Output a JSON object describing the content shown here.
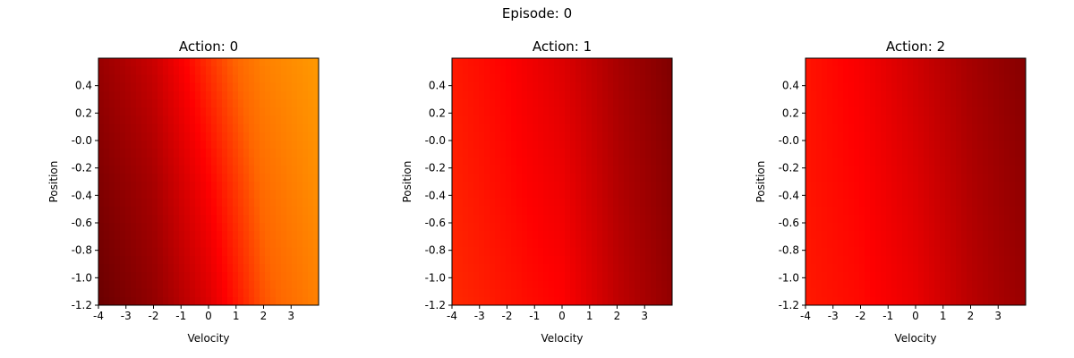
{
  "figure": {
    "suptitle": "Episode: 0"
  },
  "colormap": [
    "#5a0000",
    "#a80000",
    "#ff0000",
    "#ff6600",
    "#ff9900"
  ],
  "chart_data": [
    {
      "type": "heatmap",
      "title": "Action: 0",
      "xlabel": "Velocity",
      "ylabel": "Position",
      "xlim": [
        -4,
        4
      ],
      "ylim": [
        -1.2,
        0.6
      ],
      "xticks": [
        -4,
        -3,
        -2,
        -1,
        0,
        1,
        2,
        3
      ],
      "xtick_labels": [
        "-4",
        "-3",
        "-2",
        "-1",
        "0",
        "1",
        "2",
        "3"
      ],
      "yticks": [
        -1.2,
        -1.0,
        -0.8,
        -0.6,
        -0.4,
        -0.2,
        0.0,
        0.2,
        0.4
      ],
      "ytick_labels": [
        "-1.2",
        "-1.0",
        "-0.8",
        "-0.6",
        "-0.4",
        "-0.2",
        "-0.0",
        "0.2",
        "0.4"
      ],
      "grid": false,
      "value_grid": {
        "x": [
          -4,
          -2,
          0,
          2,
          4
        ],
        "y": [
          -1.2,
          -0.3,
          0.6
        ],
        "z": [
          [
            0.05,
            0.18,
            0.4,
            0.7,
            0.88
          ],
          [
            0.12,
            0.25,
            0.5,
            0.78,
            0.95
          ],
          [
            0.2,
            0.35,
            0.62,
            0.88,
            1.0
          ]
        ]
      }
    },
    {
      "type": "heatmap",
      "title": "Action: 1",
      "xlabel": "Velocity",
      "ylabel": "Position",
      "xlim": [
        -4,
        4
      ],
      "ylim": [
        -1.2,
        0.6
      ],
      "xticks": [
        -4,
        -3,
        -2,
        -1,
        0,
        1,
        2,
        3
      ],
      "xtick_labels": [
        "-4",
        "-3",
        "-2",
        "-1",
        "0",
        "1",
        "2",
        "3"
      ],
      "yticks": [
        -1.2,
        -1.0,
        -0.8,
        -0.6,
        -0.4,
        -0.2,
        0.0,
        0.2,
        0.4
      ],
      "ytick_labels": [
        "-1.2",
        "-1.0",
        "-0.8",
        "-0.6",
        "-0.4",
        "-0.2",
        "-0.0",
        "0.2",
        "0.4"
      ],
      "grid": false,
      "value_grid": {
        "x": [
          -4,
          -2,
          0,
          2,
          4
        ],
        "y": [
          -1.2,
          -0.3,
          0.6
        ],
        "z": [
          [
            0.6,
            0.55,
            0.5,
            0.32,
            0.18
          ],
          [
            0.58,
            0.52,
            0.45,
            0.28,
            0.15
          ],
          [
            0.56,
            0.5,
            0.4,
            0.25,
            0.12
          ]
        ]
      }
    },
    {
      "type": "heatmap",
      "title": "Action: 2",
      "xlabel": "Velocity",
      "ylabel": "Position",
      "xlim": [
        -4,
        4
      ],
      "ylim": [
        -1.2,
        0.6
      ],
      "xticks": [
        -4,
        -3,
        -2,
        -1,
        0,
        1,
        2,
        3
      ],
      "xtick_labels": [
        "-4",
        "-3",
        "-2",
        "-1",
        "0",
        "1",
        "2",
        "3"
      ],
      "yticks": [
        -1.2,
        -1.0,
        -0.8,
        -0.6,
        -0.4,
        -0.2,
        0.0,
        0.2,
        0.4
      ],
      "ytick_labels": [
        "-1.2",
        "-1.0",
        "-0.8",
        "-0.6",
        "-0.4",
        "-0.2",
        "-0.0",
        "0.2",
        "0.4"
      ],
      "grid": false,
      "value_grid": {
        "x": [
          -4,
          -2,
          0,
          2,
          4
        ],
        "y": [
          -1.2,
          -0.3,
          0.6
        ],
        "z": [
          [
            0.56,
            0.52,
            0.44,
            0.3,
            0.2
          ],
          [
            0.55,
            0.5,
            0.4,
            0.27,
            0.17
          ],
          [
            0.55,
            0.48,
            0.36,
            0.24,
            0.14
          ]
        ]
      }
    }
  ]
}
